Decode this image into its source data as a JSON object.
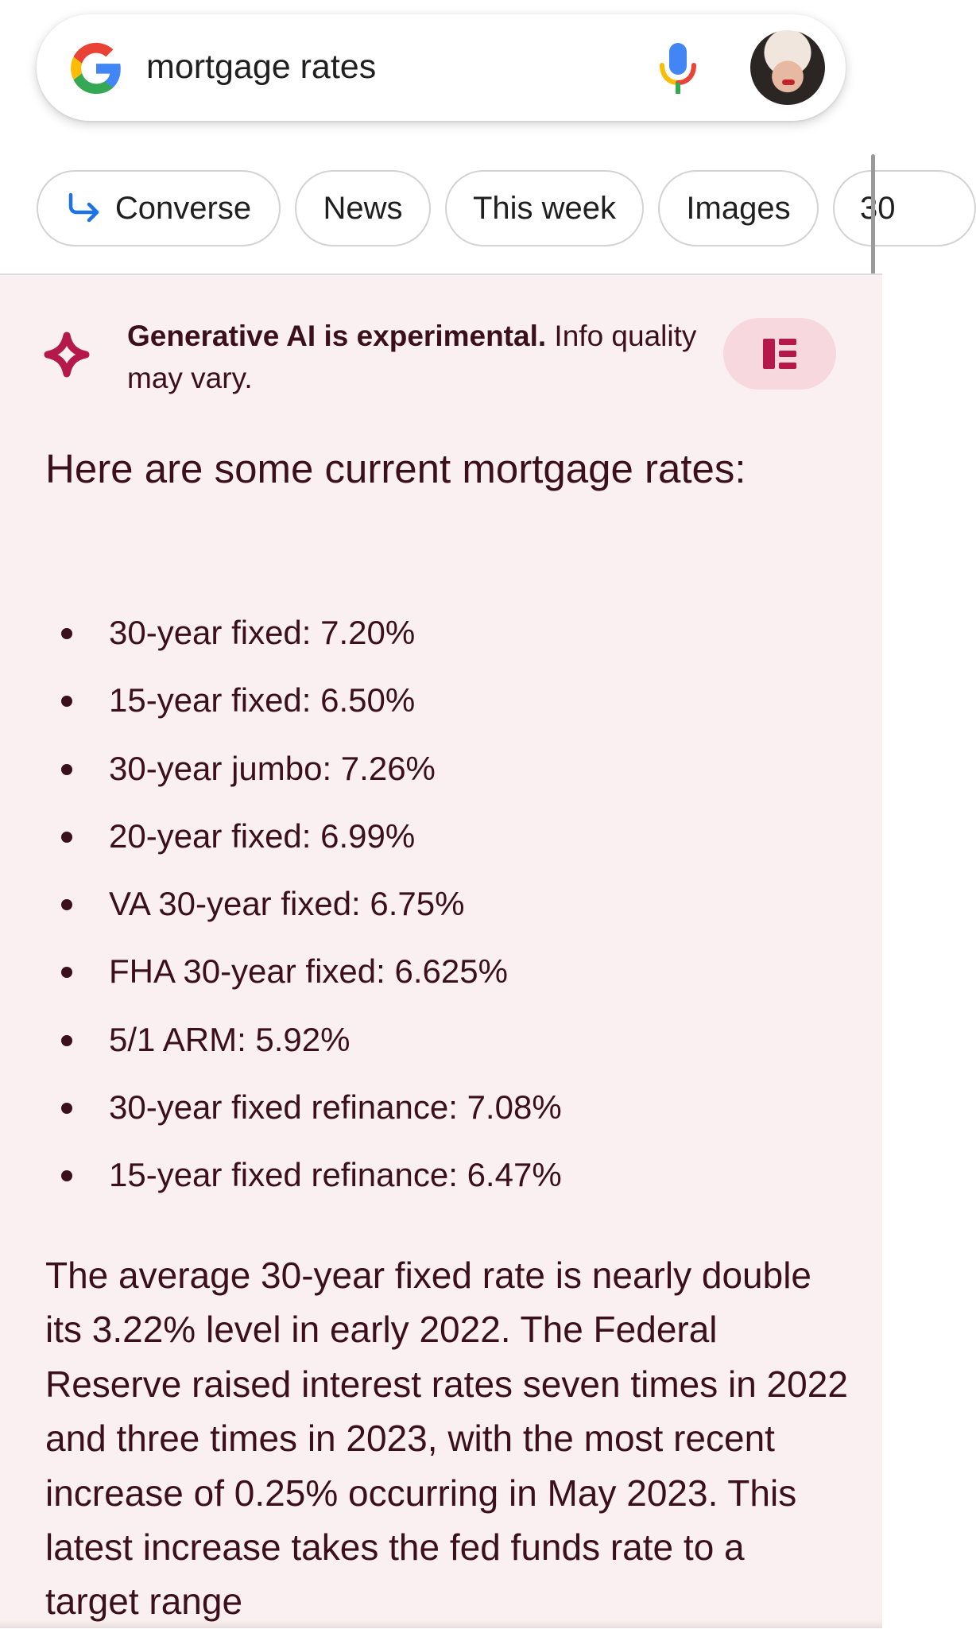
{
  "search": {
    "query": "mortgage rates",
    "logo_icon": "google-g-icon",
    "mic_icon": "microphone-icon",
    "avatar": "profile-avatar"
  },
  "chips": [
    {
      "label": "Converse",
      "icon": "converse-arrow-icon"
    },
    {
      "label": "News"
    },
    {
      "label": "This week"
    },
    {
      "label": "Images"
    },
    {
      "label": "30"
    }
  ],
  "sge": {
    "icon": "generative-ai-sparkle-icon",
    "notice_bold": "Generative AI is experimental.",
    "notice_rest": " Info quality may vary.",
    "layout_button_icon": "layout-toggle-icon",
    "heading": "Here are some current mortgage rates:",
    "rates": [
      "30-year fixed: 7.20%",
      "15-year fixed: 6.50%",
      "30-year jumbo: 7.26%",
      "20-year fixed: 6.99%",
      "VA 30-year fixed: 6.75%",
      "FHA 30-year fixed: 6.625%",
      "5/1 ARM: 5.92%",
      "30-year fixed refinance: 7.08%",
      "15-year fixed refinance: 6.47%"
    ],
    "paragraph": "The average 30-year fixed rate is nearly double its 3.22% level in early 2022. The Federal Reserve raised interest rates seven times in 2022 and three times in 2023, with the most recent increase of 0.25% occurring in May 2023. This latest increase takes the fed funds rate to a target range"
  },
  "colors": {
    "panel_background": "#fbf0f1",
    "text_maroon": "#3c0f1d",
    "accent_pink": "#b5194c",
    "layout_button_background": "#f6d8de",
    "chip_border": "#d3d3d3",
    "converse_arrow": "#1a73e8"
  }
}
